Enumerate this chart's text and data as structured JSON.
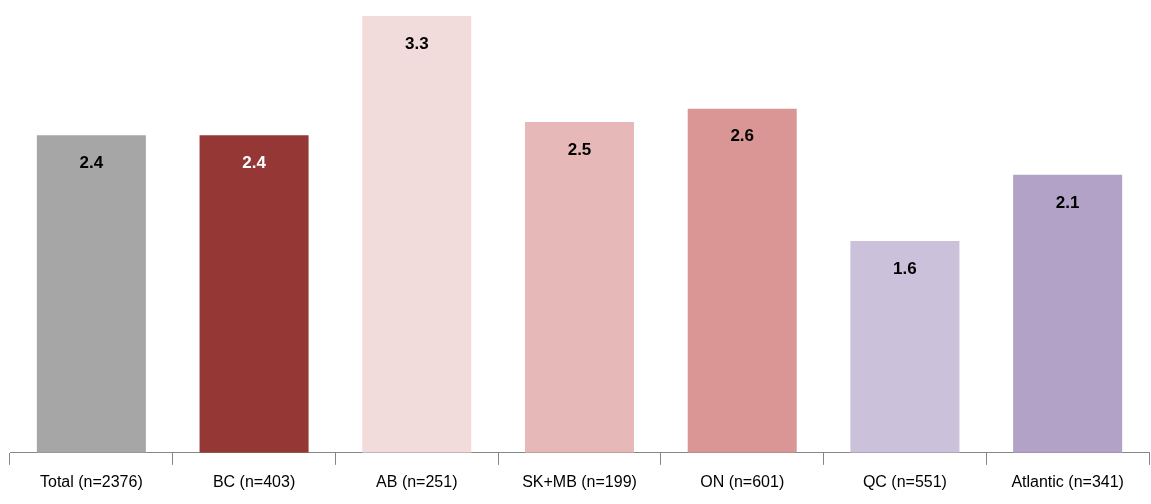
{
  "chart_data": {
    "type": "bar",
    "categories": [
      "Total (n=2376)",
      "BC (n=403)",
      "AB (n=251)",
      "SK+MB (n=199)",
      "ON (n=601)",
      "QC (n=551)",
      "Atlantic (n=341)"
    ],
    "values": [
      2.4,
      2.4,
      3.3,
      2.5,
      2.6,
      1.6,
      2.1
    ],
    "colors": [
      "#a6a6a6",
      "#953735",
      "#f2dcdb",
      "#e6b9b8",
      "#d99694",
      "#ccc1da",
      "#b3a2c7"
    ],
    "data_labels": true,
    "grid": false,
    "legend": false
  }
}
